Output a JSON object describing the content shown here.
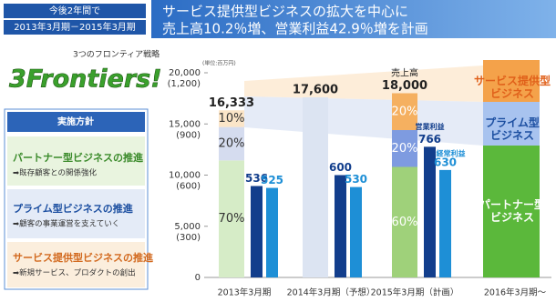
{
  "header": {
    "period_label": "今後2年間で",
    "period_range": "2013年3月期－2015年3月期",
    "title_lines": [
      "サービス提供型ビジネスの拡大を中心に",
      "売上高10.2％増、営業利益42.9％増を計画"
    ]
  },
  "strategy": {
    "caption": "3つのフロンティア戦略",
    "logo": "3Frontiers!"
  },
  "policy": {
    "title": "実施方針",
    "items": [
      {
        "title": "パートナー型ビジネスの推進",
        "detail": "➡既存顧客との関係強化"
      },
      {
        "title": "プライム型ビジネスの推進",
        "detail": "➡顧客の事業運営を支えていく"
      },
      {
        "title": "サービス提供型ビジネスの推進",
        "detail": "➡新規サービス、プロダクトの創出"
      }
    ]
  },
  "chart_data": {
    "type": "bar",
    "unit": "(単位:百万円)",
    "categories": [
      "2013年3月期",
      "2014年3月期（予想）",
      "2015年3月期（計画）",
      "2016年3月期～"
    ],
    "ylim": [
      0,
      20000
    ],
    "yticks": [
      0,
      {
        "value": 5000,
        "label": "5,000"
      },
      {
        "value": 10000,
        "label": "10,000"
      },
      {
        "value": 15000,
        "label": "15,000"
      },
      {
        "value": 20000,
        "label": "20,000"
      }
    ],
    "y2lim": [
      0,
      1200
    ],
    "y2ticks": [
      {
        "value": 300,
        "label": "(300)"
      },
      {
        "value": 600,
        "label": "(600)"
      },
      {
        "value": 900,
        "label": "(900)"
      },
      {
        "value": 1200,
        "label": "(1,200)"
      }
    ],
    "revenue": {
      "name": "売上高",
      "values": [
        16333,
        17600,
        18000,
        null
      ],
      "value_labels": [
        "16,333",
        "17,600",
        "18,000",
        null
      ]
    },
    "shares": [
      {
        "name": "パートナー型\nビジネス",
        "color": "#9fd17a",
        "values": [
          70,
          null,
          60,
          null
        ],
        "value_labels": [
          "70%",
          null,
          "60%",
          null
        ]
      },
      {
        "name": "プライム型\nビジネス",
        "color": "#7e9be0",
        "values": [
          20,
          null,
          20,
          null
        ],
        "value_labels": [
          "20%",
          null,
          "20%",
          null
        ]
      },
      {
        "name": "サービス提供型\nビジネス",
        "color": "#f5b060",
        "values": [
          10,
          null,
          20,
          null
        ],
        "value_labels": [
          "10%",
          null,
          "20%",
          null
        ]
      }
    ],
    "series": [
      {
        "name": "営業利益",
        "color": "#123e8c",
        "axis": "y2",
        "values": [
          536,
          600,
          766,
          null
        ]
      },
      {
        "name": "経常利益",
        "color": "#1e8fd6",
        "axis": "y2",
        "values": [
          525,
          530,
          630,
          null
        ]
      }
    ]
  }
}
